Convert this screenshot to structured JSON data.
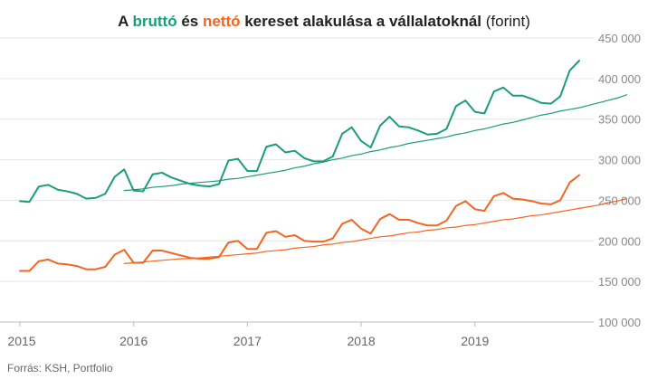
{
  "chart_data": {
    "type": "line",
    "title": {
      "parts": [
        {
          "text": "A ",
          "style": "bold"
        },
        {
          "text": "bruttó",
          "style": "bold",
          "color": "#1a9e77"
        },
        {
          "text": " és ",
          "style": "bold"
        },
        {
          "text": "nettó",
          "style": "bold",
          "color": "#f26522"
        },
        {
          "text": " kereset alakulása a vállalatoknál ",
          "style": "bold"
        },
        {
          "text": "(forint)",
          "style": "normal"
        }
      ]
    },
    "source": "Forrás: KSH, Portfolio",
    "xlabel": "",
    "ylabel": "",
    "x_start": "2015-01",
    "x_tick_labels": [
      "2015",
      "2016",
      "2017",
      "2018",
      "2019"
    ],
    "y_ticks": [
      {
        "value": 100000,
        "label": "100 000"
      },
      {
        "value": 150000,
        "label": "150 000"
      },
      {
        "value": 200000,
        "label": "200 000"
      },
      {
        "value": 250000,
        "label": "250 000"
      },
      {
        "value": 300000,
        "label": "300 000"
      },
      {
        "value": 350000,
        "label": "350 000"
      },
      {
        "value": 400000,
        "label": "400 000"
      },
      {
        "value": 450000,
        "label": "450 000"
      }
    ],
    "ylim": [
      100000,
      450000
    ],
    "grid": true,
    "y_axis_position": "right",
    "series": [
      {
        "color": "#1a9e77",
        "width": 2,
        "start_index": 0,
        "values": [
          249000,
          248000,
          267000,
          269000,
          263000,
          261000,
          258000,
          252000,
          253000,
          258000,
          279000,
          288000,
          262000,
          261000,
          282000,
          284000,
          278000,
          274000,
          270000,
          268000,
          267000,
          270000,
          299000,
          301000,
          286000,
          286000,
          316000,
          319000,
          309000,
          311000,
          302000,
          298000,
          298000,
          304000,
          332000,
          340000,
          323000,
          315000,
          342000,
          353000,
          341000,
          340000,
          336000,
          331000,
          332000,
          338000,
          366000,
          373000,
          359000,
          357000,
          384000,
          389000,
          379000,
          379000,
          375000,
          370000,
          369000,
          378000,
          410000,
          422000
        ]
      },
      {
        "color": "#1a9e77",
        "width": 1.2,
        "start_index": 11,
        "values": [
          262000,
          263000,
          264000,
          266000,
          267000,
          268000,
          270000,
          271000,
          272000,
          273000,
          274000,
          276000,
          277000,
          279000,
          281000,
          283000,
          285000,
          287000,
          290000,
          292000,
          295000,
          297000,
          300000,
          302000,
          305000,
          307000,
          310000,
          312000,
          315000,
          317000,
          320000,
          322000,
          324000,
          326000,
          328000,
          331000,
          333000,
          336000,
          338000,
          341000,
          344000,
          346000,
          349000,
          352000,
          355000,
          357000,
          360000,
          362000,
          364000,
          367000,
          370000,
          373000,
          376000,
          380000
        ]
      },
      {
        "color": "#f26522",
        "width": 2,
        "start_index": 0,
        "values": [
          163000,
          163000,
          175000,
          177000,
          172000,
          171000,
          169000,
          165000,
          165000,
          168000,
          183000,
          189000,
          173000,
          173000,
          188000,
          188000,
          185000,
          182000,
          179000,
          178000,
          178000,
          180000,
          198000,
          200000,
          190000,
          190000,
          210000,
          212000,
          205000,
          207000,
          200000,
          199000,
          199000,
          203000,
          221000,
          226000,
          215000,
          209000,
          227000,
          233000,
          226000,
          226000,
          222000,
          219000,
          219000,
          225000,
          243000,
          249000,
          239000,
          237000,
          255000,
          259000,
          252000,
          251000,
          249000,
          246000,
          245000,
          250000,
          272000,
          281000
        ]
      },
      {
        "color": "#f26522",
        "width": 1.2,
        "start_index": 11,
        "values": [
          172000,
          173000,
          174000,
          175000,
          176000,
          177000,
          178000,
          178000,
          179000,
          180000,
          181000,
          182000,
          183000,
          184000,
          185000,
          187000,
          188000,
          189000,
          191000,
          192000,
          193000,
          195000,
          196000,
          198000,
          199000,
          201000,
          203000,
          205000,
          206000,
          208000,
          210000,
          211000,
          213000,
          214000,
          216000,
          217000,
          219000,
          220000,
          222000,
          224000,
          226000,
          227000,
          229000,
          231000,
          232000,
          234000,
          236000,
          238000,
          240000,
          242000,
          244000,
          247000,
          249000,
          252000
        ]
      }
    ]
  }
}
